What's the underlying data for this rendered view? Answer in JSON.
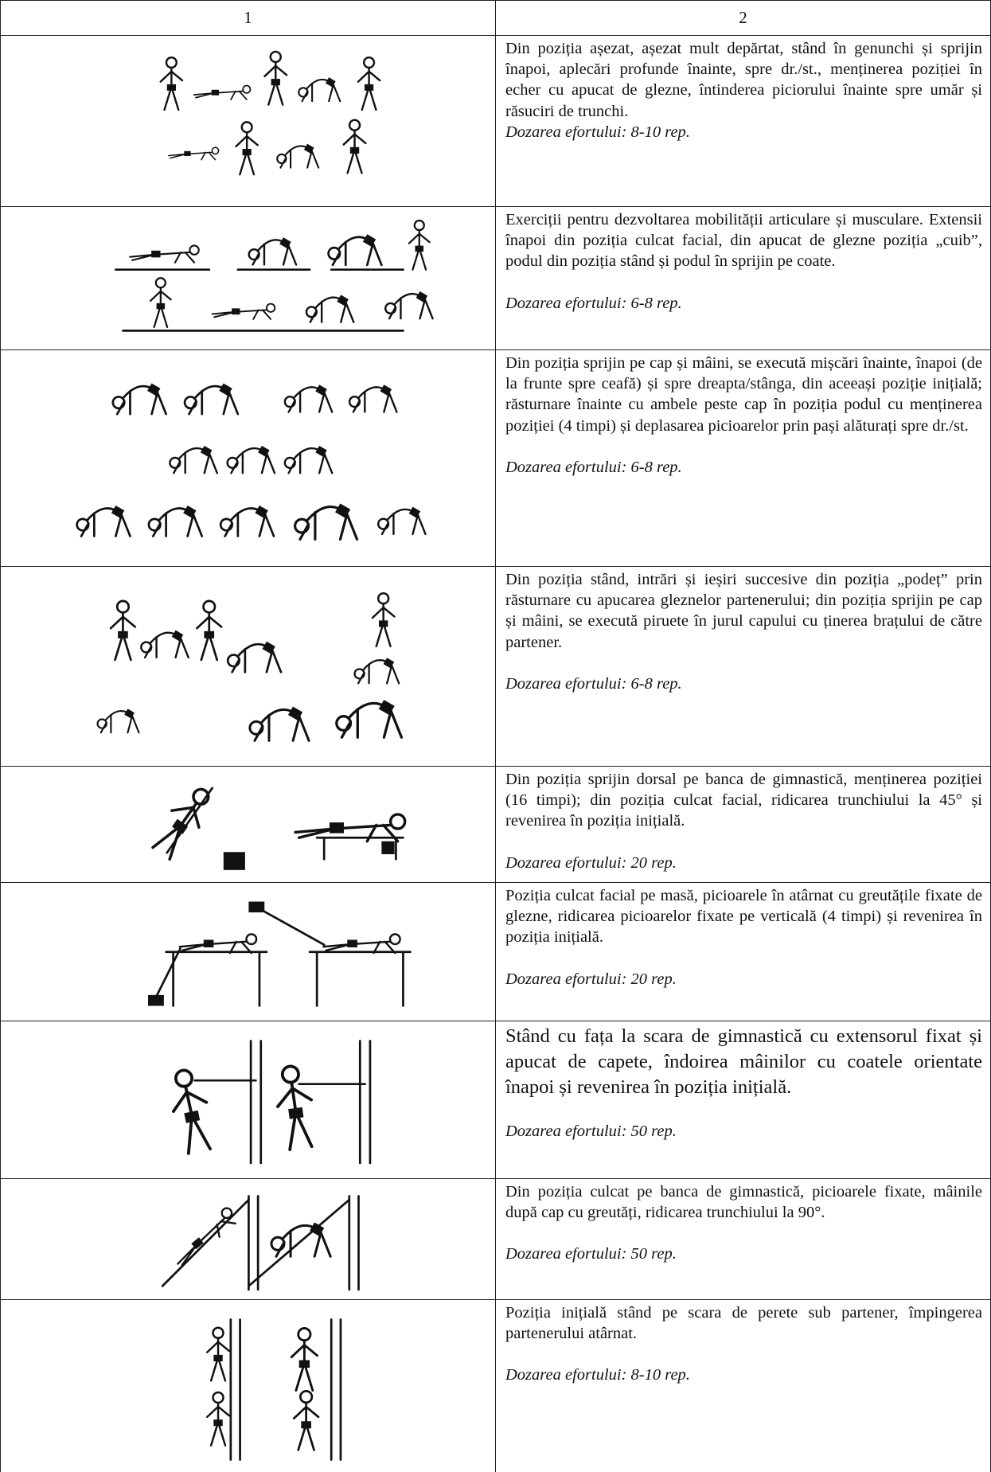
{
  "header": [
    "1",
    "2"
  ],
  "rows": [
    {
      "description": "Din poziția așezat, așezat mult depărtat, stând în genunchi și sprijin înapoi, aplecări profunde înainte, spre dr./st., menținerea poziției în echer cu apucat de glezne, întinderea piciorului înainte spre umăr și răsuciri de trunchi.",
      "dosage": "Dozarea efortului: 8-10 rep."
    },
    {
      "description": "Exerciții pentru dezvoltarea mobilității articulare și musculare. Extensii înapoi din poziția culcat facial, din apucat de glezne poziția „cuib”, podul din poziția stând și podul în sprijin pe coate.",
      "dosage": "Dozarea efortului: 6-8 rep."
    },
    {
      "description": "Din poziția sprijin pe cap și mâini, se execută mișcări înainte, înapoi (de la frunte spre ceafă) și spre dreapta/stânga, din aceeași poziție inițială; răsturnare înainte cu ambele peste cap în poziția podul cu menținerea poziției (4 timpi) și deplasarea picioarelor prin pași alăturați spre dr./st.",
      "dosage": "Dozarea efortului: 6-8 rep."
    },
    {
      "description": "Din poziția stând, intrări și ieșiri succesive din poziția „podeț” prin răsturnare cu apucarea gleznelor partenerului; din poziția sprijin pe cap și mâini, se execută piruete în jurul capului cu ținerea brațului de către partener.",
      "dosage": "Dozarea efortului: 6-8 rep."
    },
    {
      "description": "Din poziția sprijin dorsal pe banca de gimnastică, menținerea poziției (16 timpi); din poziția culcat facial, ridicarea trunchiului la 45° și revenirea în poziția inițială.",
      "dosage": "Dozarea efortului: 20 rep."
    },
    {
      "description": "Poziția culcat facial pe masă, picioarele în atârnat cu greutățile fixate de glezne, ridicarea picioarelor fixate pe verticală (4 timpi) și revenirea în poziția inițială.",
      "dosage": "Dozarea efortului: 20 rep."
    },
    {
      "description": "Stând cu fața la scara de gimnastică cu extensorul fixat și apucat de capete, îndoirea mâinilor cu coatele orientate înapoi și revenirea în poziția inițială.",
      "dosage": "Dozarea efortului: 50 rep."
    },
    {
      "description": "Din poziția culcat pe banca de gimnastică, picioarele fixate, mâinile după cap cu greutăți, ridicarea trunchiului la 90°.",
      "dosage": "Dozarea efortului: 50 rep."
    },
    {
      "description": "Poziția inițială stând pe scara de perete sub partener, împingerea partenerului atârnat.",
      "dosage": "Dozarea efortului: 8-10 rep."
    }
  ]
}
